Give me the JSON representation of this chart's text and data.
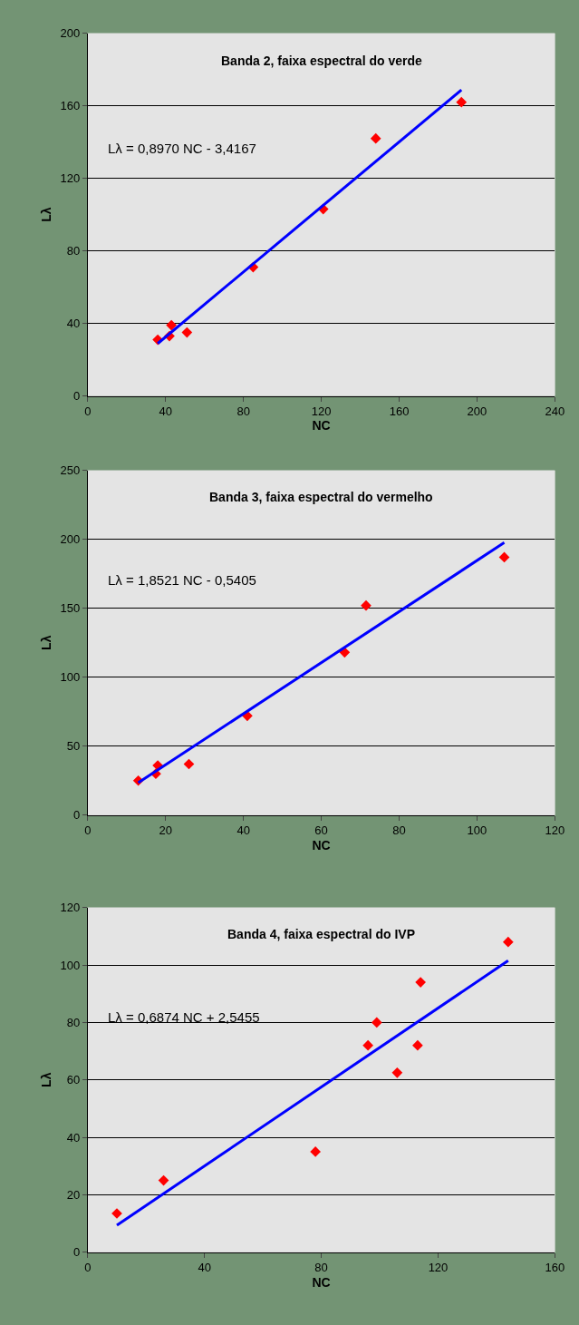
{
  "chart_data": [
    {
      "type": "scatter",
      "title": "Banda 2, faixa espectral do verde",
      "xlabel": "NC",
      "ylabel": "Lλ",
      "annotations": [
        "Lλ = 0,8970 NC - 3,4167"
      ],
      "xlim": [
        0,
        240
      ],
      "xticks": [
        0,
        40,
        80,
        120,
        160,
        200,
        240
      ],
      "ylim": [
        0,
        200
      ],
      "yticks": [
        0,
        40,
        80,
        120,
        160,
        200
      ],
      "grid": "y",
      "marker": "diamond",
      "series": [
        {
          "color": "#ff0000",
          "x": [
            36,
            42,
            43,
            51,
            85,
            121,
            148,
            192
          ],
          "values": [
            31,
            33,
            39,
            35,
            71,
            103,
            142,
            162
          ]
        },
        {
          "type": "line",
          "color": "#0000ff",
          "marker": "none",
          "x": [
            36,
            192
          ],
          "values": [
            28.9,
            168.8
          ]
        }
      ]
    },
    {
      "type": "scatter",
      "title": "Banda 3, faixa espectral do vermelho",
      "xlabel": "NC",
      "ylabel": "Lλ",
      "annotations": [
        "Lλ = 1,8521 NC - 0,5405"
      ],
      "xlim": [
        0,
        120
      ],
      "xticks": [
        0,
        20,
        40,
        60,
        80,
        100,
        120
      ],
      "ylim": [
        0,
        250
      ],
      "yticks": [
        0,
        50,
        100,
        150,
        200,
        250
      ],
      "grid": "y",
      "marker": "diamond",
      "series": [
        {
          "color": "#ff0000",
          "x": [
            13,
            17.5,
            18,
            26,
            41,
            66,
            71.5,
            107
          ],
          "values": [
            25,
            30,
            36,
            37,
            72,
            118,
            152,
            187
          ]
        },
        {
          "type": "line",
          "color": "#0000ff",
          "marker": "none",
          "x": [
            13,
            107
          ],
          "values": [
            23.5,
            197.6
          ]
        }
      ]
    },
    {
      "type": "scatter",
      "title": "Banda 4, faixa espectral do IVP",
      "xlabel": "NC",
      "ylabel": "Lλ",
      "annotations": [
        "Lλ = 0,6874 NC + 2,5455"
      ],
      "xlim": [
        0,
        160
      ],
      "xticks": [
        0,
        40,
        80,
        120,
        160
      ],
      "ylim": [
        0,
        120
      ],
      "yticks": [
        0,
        20,
        40,
        60,
        80,
        100,
        120
      ],
      "grid": "y",
      "marker": "diamond",
      "series": [
        {
          "color": "#ff0000",
          "x": [
            10,
            26,
            78,
            96,
            99,
            106,
            113,
            114,
            144
          ],
          "values": [
            13.5,
            25,
            35,
            72,
            80,
            62.5,
            72,
            94,
            108
          ]
        },
        {
          "type": "line",
          "color": "#0000ff",
          "marker": "none",
          "x": [
            10,
            144
          ],
          "values": [
            9.4,
            101.5
          ]
        }
      ]
    }
  ]
}
